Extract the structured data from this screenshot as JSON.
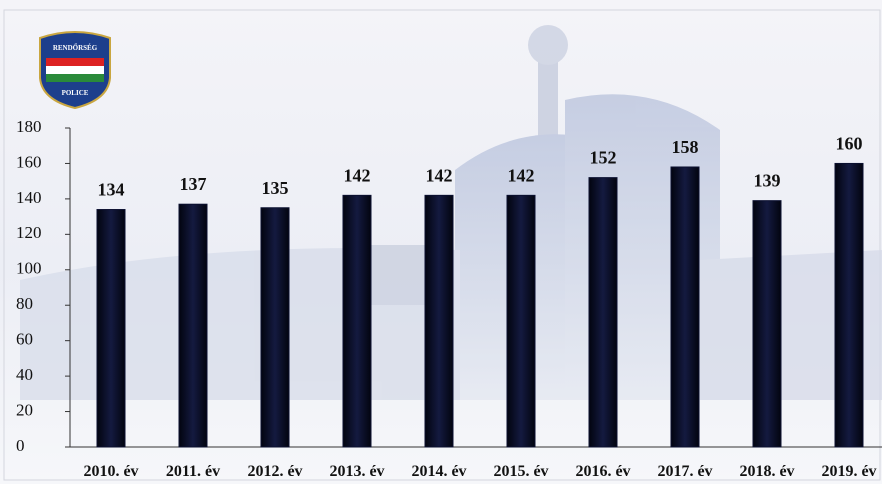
{
  "chart_data": {
    "type": "bar",
    "categories": [
      "2010. év",
      "2011. év",
      "2012. év",
      "2013. év",
      "2014. év",
      "2015. év",
      "2016. év",
      "2017. év",
      "2018. év",
      "2019. év"
    ],
    "values": [
      134,
      137,
      135,
      142,
      142,
      142,
      152,
      158,
      139,
      160
    ],
    "color": "#0b1030",
    "ylim": [
      0,
      180
    ],
    "yticks": [
      0,
      20,
      40,
      60,
      80,
      100,
      120,
      140,
      160,
      180
    ],
    "annotations": [
      "RENDŐRSÉG",
      "POLICE"
    ]
  }
}
